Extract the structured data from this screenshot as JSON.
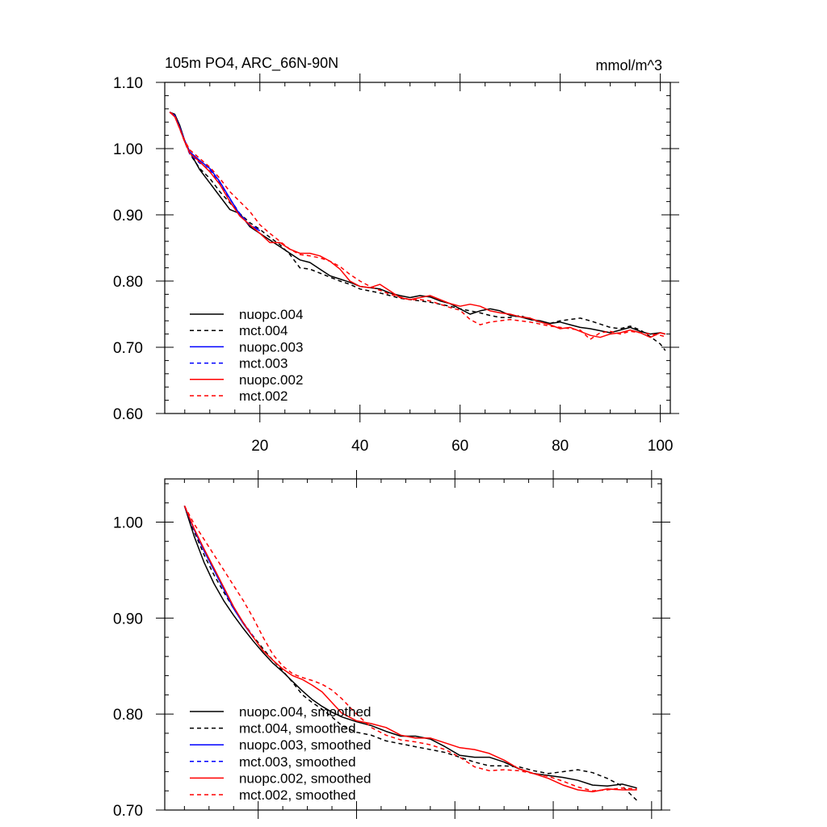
{
  "chart_data": [
    {
      "type": "line",
      "title": "105m PO4, ARC_66N-90N",
      "units": "mmol/m^3",
      "xlim": [
        1,
        102
      ],
      "ylim": [
        0.6,
        1.1
      ],
      "xticks": [
        20,
        40,
        60,
        80,
        100
      ],
      "xtick_labels": [
        "20",
        "40",
        "60",
        "80",
        "100"
      ],
      "yticks": [
        0.6,
        0.7,
        0.8,
        0.9,
        1.0,
        1.1
      ],
      "ytick_labels": [
        "0.60",
        "0.70",
        "0.80",
        "0.90",
        "1.00",
        "1.10"
      ],
      "legend_position": "bottom-left",
      "series": [
        {
          "name": "nuopc.004",
          "color": "#000000",
          "dash": "solid",
          "x": [
            2,
            3,
            4,
            5,
            6,
            8,
            10,
            12,
            14,
            16,
            18,
            20,
            22,
            24,
            26,
            28,
            30,
            32,
            34,
            36,
            38,
            40,
            42,
            44,
            46,
            48,
            50,
            52,
            54,
            56,
            58,
            60,
            62,
            64,
            66,
            68,
            70,
            72,
            74,
            76,
            78,
            80,
            82,
            84,
            86,
            88,
            90,
            92,
            94,
            96,
            98,
            100,
            101
          ],
          "y": [
            1.055,
            1.052,
            1.035,
            1.012,
            0.995,
            0.968,
            0.948,
            0.928,
            0.908,
            0.902,
            0.882,
            0.872,
            0.862,
            0.852,
            0.842,
            0.832,
            0.828,
            0.818,
            0.808,
            0.803,
            0.798,
            0.792,
            0.79,
            0.788,
            0.782,
            0.778,
            0.775,
            0.778,
            0.776,
            0.77,
            0.766,
            0.758,
            0.75,
            0.755,
            0.758,
            0.755,
            0.748,
            0.746,
            0.742,
            0.74,
            0.736,
            0.738,
            0.734,
            0.73,
            0.728,
            0.725,
            0.722,
            0.726,
            0.73,
            0.724,
            0.72,
            0.722,
            0.72
          ]
        },
        {
          "name": "mct.004",
          "color": "#000000",
          "dash": "dashed",
          "x": [
            2,
            3,
            4,
            5,
            6,
            8,
            10,
            12,
            14,
            16,
            18,
            20,
            22,
            24,
            26,
            28,
            30,
            32,
            34,
            36,
            38,
            40,
            42,
            44,
            46,
            48,
            50,
            52,
            54,
            56,
            58,
            60,
            62,
            64,
            66,
            68,
            70,
            72,
            74,
            76,
            78,
            80,
            82,
            84,
            86,
            88,
            90,
            92,
            94,
            96,
            98,
            100,
            101
          ],
          "y": [
            1.055,
            1.05,
            1.03,
            1.01,
            0.992,
            0.97,
            0.955,
            0.935,
            0.918,
            0.902,
            0.888,
            0.878,
            0.866,
            0.855,
            0.84,
            0.82,
            0.818,
            0.812,
            0.806,
            0.8,
            0.795,
            0.788,
            0.785,
            0.782,
            0.778,
            0.774,
            0.772,
            0.77,
            0.768,
            0.765,
            0.762,
            0.758,
            0.755,
            0.752,
            0.748,
            0.745,
            0.745,
            0.748,
            0.742,
            0.738,
            0.736,
            0.74,
            0.742,
            0.744,
            0.74,
            0.735,
            0.73,
            0.728,
            0.732,
            0.726,
            0.716,
            0.705,
            0.695
          ]
        },
        {
          "name": "nuopc.003",
          "color": "#0000ff",
          "dash": "solid",
          "x": [
            2,
            3,
            4,
            5,
            6,
            8,
            10,
            12,
            14,
            16,
            18,
            20
          ],
          "y": [
            1.055,
            1.05,
            1.032,
            1.012,
            0.995,
            0.982,
            0.97,
            0.95,
            0.925,
            0.9,
            0.884,
            0.876
          ]
        },
        {
          "name": "mct.003",
          "color": "#0000ff",
          "dash": "dashed",
          "x": [
            2,
            3,
            4,
            5,
            6,
            8,
            10,
            12,
            14,
            16,
            18,
            20
          ],
          "y": [
            1.055,
            1.05,
            1.03,
            1.01,
            0.992,
            0.978,
            0.968,
            0.948,
            0.924,
            0.902,
            0.885,
            0.877
          ]
        },
        {
          "name": "nuopc.002",
          "color": "#ff0000",
          "dash": "solid",
          "x": [
            2,
            3,
            4,
            5,
            6,
            8,
            10,
            12,
            14,
            16,
            18,
            20,
            22,
            24,
            26,
            28,
            30,
            32,
            34,
            36,
            38,
            40,
            42,
            44,
            46,
            48,
            50,
            52,
            54,
            56,
            58,
            60,
            62,
            64,
            66,
            68,
            70,
            72,
            74,
            76,
            78,
            80,
            82,
            84,
            86,
            88,
            90,
            92,
            94,
            96,
            98,
            100,
            101
          ],
          "y": [
            1.055,
            1.048,
            1.03,
            1.01,
            0.993,
            0.98,
            0.965,
            0.946,
            0.92,
            0.898,
            0.885,
            0.872,
            0.858,
            0.858,
            0.848,
            0.842,
            0.842,
            0.838,
            0.83,
            0.818,
            0.8,
            0.792,
            0.79,
            0.795,
            0.785,
            0.775,
            0.772,
            0.775,
            0.778,
            0.772,
            0.766,
            0.762,
            0.765,
            0.762,
            0.755,
            0.752,
            0.75,
            0.746,
            0.744,
            0.738,
            0.734,
            0.728,
            0.73,
            0.724,
            0.718,
            0.715,
            0.72,
            0.722,
            0.726,
            0.722,
            0.715,
            0.722,
            0.72
          ]
        },
        {
          "name": "mct.002",
          "color": "#ff0000",
          "dash": "dashed",
          "x": [
            2,
            3,
            4,
            5,
            6,
            8,
            10,
            12,
            14,
            16,
            18,
            20,
            22,
            24,
            26,
            28,
            30,
            32,
            34,
            36,
            38,
            40,
            42,
            44,
            46,
            48,
            50,
            52,
            54,
            56,
            58,
            60,
            62,
            64,
            66,
            68,
            70,
            72,
            74,
            76,
            78,
            80,
            82,
            84,
            86,
            88,
            90,
            92,
            94,
            96,
            98,
            100,
            101
          ],
          "y": [
            1.055,
            1.05,
            1.03,
            1.012,
            0.998,
            0.985,
            0.972,
            0.955,
            0.935,
            0.92,
            0.905,
            0.885,
            0.872,
            0.86,
            0.848,
            0.84,
            0.838,
            0.835,
            0.83,
            0.822,
            0.81,
            0.8,
            0.792,
            0.786,
            0.78,
            0.776,
            0.772,
            0.772,
            0.77,
            0.765,
            0.76,
            0.756,
            0.742,
            0.734,
            0.738,
            0.74,
            0.742,
            0.74,
            0.738,
            0.735,
            0.732,
            0.73,
            0.728,
            0.726,
            0.712,
            0.722,
            0.724,
            0.72,
            0.724,
            0.722,
            0.72,
            0.718,
            0.716
          ]
        }
      ]
    },
    {
      "type": "line",
      "title": "",
      "units": "",
      "xlim": [
        1,
        102
      ],
      "ylim": [
        0.7,
        1.045
      ],
      "xticks": [
        20,
        40,
        60,
        80,
        100
      ],
      "xtick_labels": [],
      "yticks": [
        0.7,
        0.8,
        0.9,
        1.0
      ],
      "ytick_labels": [
        "0.70",
        "0.80",
        "0.90",
        "1.00"
      ],
      "legend_position": "bottom-left",
      "series": [
        {
          "name": "nuopc.004, smoothed",
          "color": "#000000",
          "dash": "solid",
          "x": [
            5,
            7,
            9,
            11,
            13,
            15,
            17,
            19,
            21,
            23,
            25,
            27,
            29,
            31,
            33,
            35,
            37,
            40,
            43,
            46,
            49,
            52,
            55,
            58,
            61,
            64,
            67,
            70,
            73,
            76,
            79,
            82,
            85,
            88,
            91,
            94,
            97
          ],
          "y": [
            1.017,
            0.985,
            0.958,
            0.936,
            0.918,
            0.903,
            0.889,
            0.876,
            0.864,
            0.853,
            0.844,
            0.834,
            0.824,
            0.815,
            0.808,
            0.802,
            0.797,
            0.792,
            0.788,
            0.782,
            0.777,
            0.777,
            0.774,
            0.766,
            0.757,
            0.755,
            0.755,
            0.75,
            0.743,
            0.738,
            0.736,
            0.734,
            0.731,
            0.726,
            0.725,
            0.727,
            0.723
          ]
        },
        {
          "name": "mct.004, smoothed",
          "color": "#000000",
          "dash": "dashed",
          "x": [
            5,
            7,
            9,
            11,
            13,
            15,
            17,
            19,
            21,
            23,
            25,
            27,
            29,
            31,
            33,
            35,
            37,
            40,
            43,
            46,
            49,
            52,
            55,
            58,
            61,
            64,
            67,
            70,
            73,
            76,
            79,
            82,
            85,
            88,
            91,
            94,
            97
          ],
          "y": [
            1.017,
            0.99,
            0.966,
            0.945,
            0.927,
            0.91,
            0.895,
            0.881,
            0.868,
            0.856,
            0.845,
            0.833,
            0.82,
            0.812,
            0.805,
            0.797,
            0.788,
            0.781,
            0.778,
            0.772,
            0.769,
            0.766,
            0.763,
            0.76,
            0.755,
            0.75,
            0.746,
            0.746,
            0.745,
            0.741,
            0.738,
            0.74,
            0.742,
            0.739,
            0.733,
            0.725,
            0.71
          ]
        },
        {
          "name": "nuopc.003, smoothed",
          "color": "#0000ff",
          "dash": "solid",
          "x": [
            5,
            7,
            9,
            11,
            13,
            15,
            17,
            19
          ],
          "y": [
            1.017,
            0.992,
            0.97,
            0.95,
            0.93,
            0.91,
            0.894,
            0.88
          ]
        },
        {
          "name": "mct.003, smoothed",
          "color": "#0000ff",
          "dash": "dashed",
          "x": [
            5,
            7,
            9,
            11,
            13,
            15,
            17,
            19
          ],
          "y": [
            1.017,
            0.992,
            0.971,
            0.951,
            0.931,
            0.911,
            0.895,
            0.881
          ]
        },
        {
          "name": "nuopc.002, smoothed",
          "color": "#ff0000",
          "dash": "solid",
          "x": [
            5,
            7,
            9,
            11,
            13,
            15,
            17,
            19,
            21,
            23,
            25,
            27,
            29,
            31,
            33,
            35,
            37,
            40,
            43,
            46,
            49,
            52,
            55,
            58,
            61,
            64,
            67,
            70,
            73,
            76,
            79,
            82,
            85,
            88,
            91,
            94,
            97
          ],
          "y": [
            1.017,
            0.993,
            0.972,
            0.952,
            0.932,
            0.912,
            0.895,
            0.88,
            0.866,
            0.856,
            0.847,
            0.84,
            0.836,
            0.83,
            0.823,
            0.812,
            0.801,
            0.793,
            0.79,
            0.786,
            0.778,
            0.775,
            0.775,
            0.77,
            0.765,
            0.763,
            0.759,
            0.752,
            0.743,
            0.738,
            0.733,
            0.726,
            0.721,
            0.719,
            0.722,
            0.721,
            0.721
          ]
        },
        {
          "name": "mct.002, smoothed",
          "color": "#ff0000",
          "dash": "dashed",
          "x": [
            5,
            7,
            9,
            11,
            13,
            15,
            17,
            19,
            21,
            23,
            25,
            27,
            29,
            31,
            33,
            35,
            37,
            40,
            43,
            46,
            49,
            52,
            55,
            58,
            61,
            64,
            67,
            70,
            73,
            76,
            79,
            82,
            85,
            88,
            91,
            94,
            97
          ],
          "y": [
            1.017,
            0.998,
            0.982,
            0.966,
            0.95,
            0.934,
            0.918,
            0.9,
            0.88,
            0.862,
            0.85,
            0.842,
            0.838,
            0.835,
            0.831,
            0.825,
            0.816,
            0.8,
            0.786,
            0.778,
            0.773,
            0.771,
            0.768,
            0.763,
            0.755,
            0.745,
            0.741,
            0.742,
            0.741,
            0.738,
            0.735,
            0.73,
            0.724,
            0.72,
            0.721,
            0.723,
            0.722
          ]
        }
      ]
    }
  ]
}
